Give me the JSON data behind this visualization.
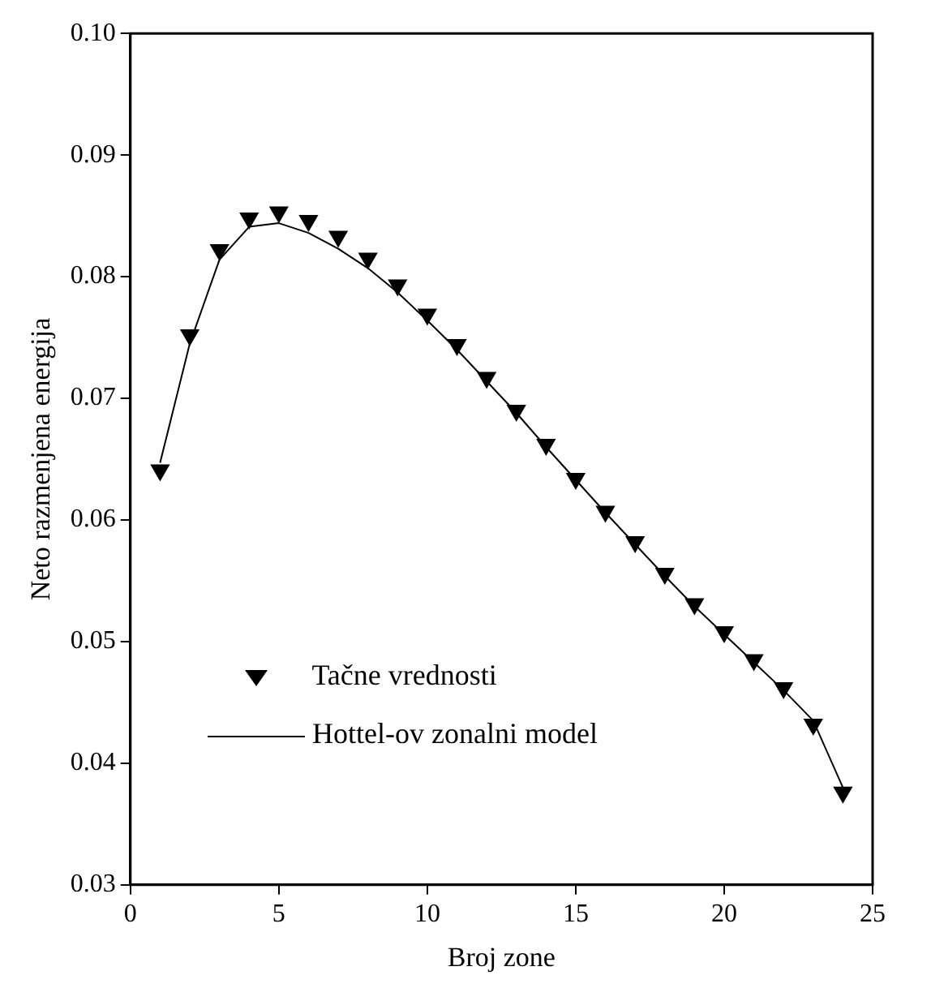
{
  "chart_data": {
    "type": "scatter",
    "xlabel": "Broj zone",
    "ylabel": "Neto razmenjena energija",
    "x": [
      1,
      2,
      3,
      4,
      5,
      6,
      7,
      8,
      9,
      10,
      11,
      12,
      13,
      14,
      15,
      16,
      17,
      18,
      19,
      20,
      21,
      22,
      23,
      24
    ],
    "series": [
      {
        "name": "Tačne vrednosti",
        "type": "scatter",
        "color": "#000000",
        "marker": "triangle",
        "values": [
          0.0641,
          0.0752,
          0.0822,
          0.0848,
          0.0853,
          0.0846,
          0.0833,
          0.0815,
          0.0793,
          0.0769,
          0.0744,
          0.0717,
          0.069,
          0.0662,
          0.0634,
          0.0607,
          0.0582,
          0.0556,
          0.0531,
          0.0508,
          0.0485,
          0.0462,
          0.0432,
          0.0376
        ]
      },
      {
        "name": "Hottel-ov zonalni model",
        "type": "line",
        "color": "#000000",
        "marker": "none",
        "line_style": "solid",
        "values": [
          0.0647,
          0.0745,
          0.0814,
          0.0841,
          0.0844,
          0.0836,
          0.0823,
          0.0807,
          0.0787,
          0.0764,
          0.074,
          0.0714,
          0.0688,
          0.066,
          0.0633,
          0.0606,
          0.058,
          0.0554,
          0.0529,
          0.0506,
          0.0483,
          0.046,
          0.0435,
          0.038
        ]
      }
    ],
    "xlim": [
      0,
      25
    ],
    "xticks": [
      0,
      5,
      10,
      15,
      20,
      25
    ],
    "ylim": [
      0.03,
      0.1
    ],
    "yticks": [
      {
        "value": 0.03,
        "label": "0.03"
      },
      {
        "value": 0.04,
        "label": "0.04"
      },
      {
        "value": 0.05,
        "label": "0.05"
      },
      {
        "value": 0.06,
        "label": "0.06"
      },
      {
        "value": 0.07,
        "label": "0.07"
      },
      {
        "value": 0.08,
        "label": "0.08"
      },
      {
        "value": 0.09,
        "label": "0.09"
      },
      {
        "value": 0.1,
        "label": "0.10"
      }
    ],
    "grid": false,
    "legend": "bottom left"
  }
}
